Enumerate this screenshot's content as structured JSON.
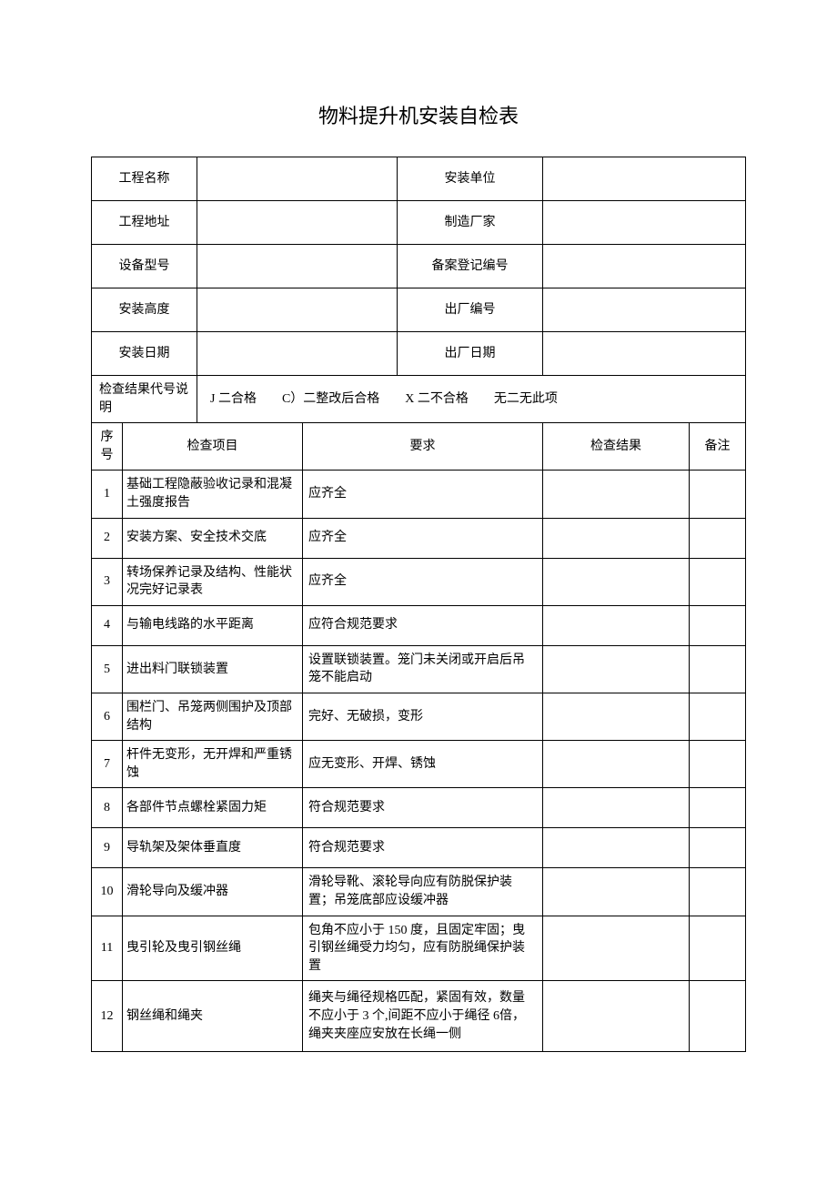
{
  "title": "物料提升机安装自检表",
  "colors": {
    "background": "#ffffff",
    "text": "#000000",
    "border": "#000000"
  },
  "typography": {
    "title_fontsize": 22,
    "body_fontsize": 14,
    "font_family": "SimSun"
  },
  "header": {
    "rows": [
      {
        "label1": "工程名称",
        "value1": "",
        "label2": "安装单位",
        "value2": ""
      },
      {
        "label1": "工程地址",
        "value1": "",
        "label2": "制造厂家",
        "value2": ""
      },
      {
        "label1": "设备型号",
        "value1": "",
        "label2": "备案登记编号",
        "value2": ""
      },
      {
        "label1": "安装高度",
        "value1": "",
        "label2": "出厂编号",
        "value2": ""
      },
      {
        "label1": "安装日期",
        "value1": "",
        "label2": "出厂日期",
        "value2": ""
      }
    ]
  },
  "legend": {
    "label": "检查结果代号说明",
    "value": "J 二合格　　C）二整改后合格　　X 二不合格　　无二无此项"
  },
  "columns": {
    "seq": "序号",
    "item": "检查项目",
    "req": "要求",
    "result": "检查结果",
    "note": "备注"
  },
  "rows": [
    {
      "seq": "1",
      "item": "基础工程隐蔽验收记录和混凝土强度报告",
      "req": "应齐全",
      "result": "",
      "note": "",
      "h": "tall"
    },
    {
      "seq": "2",
      "item": "安装方案、安全技术交底",
      "req": "应齐全",
      "result": "",
      "note": "",
      "h": "med"
    },
    {
      "seq": "3",
      "item": "转场保养记录及结构、性能状况完好记录表",
      "req": "应齐全",
      "result": "",
      "note": "",
      "h": "tall"
    },
    {
      "seq": "4",
      "item": "与输电线路的水平距离",
      "req": "应符合规范要求",
      "result": "",
      "note": "",
      "h": "med"
    },
    {
      "seq": "5",
      "item": "进出料门联锁装置",
      "req": "设置联锁装置。笼门未关闭或开启后吊笼不能启动",
      "result": "",
      "note": "",
      "h": "tall"
    },
    {
      "seq": "6",
      "item": "围栏门、吊笼两侧围护及顶部结构",
      "req": "完好、无破损，变形",
      "result": "",
      "note": "",
      "h": "tall"
    },
    {
      "seq": "7",
      "item": "杆件无变形，无开焊和严重锈蚀",
      "req": "应无变形、开焊、锈蚀",
      "result": "",
      "note": "",
      "h": "tall"
    },
    {
      "seq": "8",
      "item": "各部件节点螺栓紧固力矩",
      "req": "符合规范要求",
      "result": "",
      "note": "",
      "h": "med"
    },
    {
      "seq": "9",
      "item": "导轨架及架体垂直度",
      "req": "符合规范要求",
      "result": "",
      "note": "",
      "h": "med"
    },
    {
      "seq": "10",
      "item": "滑轮导向及缓冲器",
      "req": "滑轮导靴、滚轮导向应有防脱保护装置；吊笼底部应设缓冲器",
      "result": "",
      "note": "",
      "h": "tall"
    },
    {
      "seq": "11",
      "item": "曳引轮及曳引钢丝绳",
      "req": "包角不应小于 150 度，且固定牢固；曳引钢丝绳受力均匀，应有防脱绳保护装置",
      "result": "",
      "note": "",
      "h": "taller"
    },
    {
      "seq": "12",
      "item": "钢丝绳和绳夹",
      "req": "绳夹与绳径规格匹配，紧固有效，数量不应小于 3 个,间距不应小于绳径 6倍，绳夹夹座应安放在长绳一侧",
      "result": "",
      "note": "",
      "h": "tallest"
    }
  ]
}
